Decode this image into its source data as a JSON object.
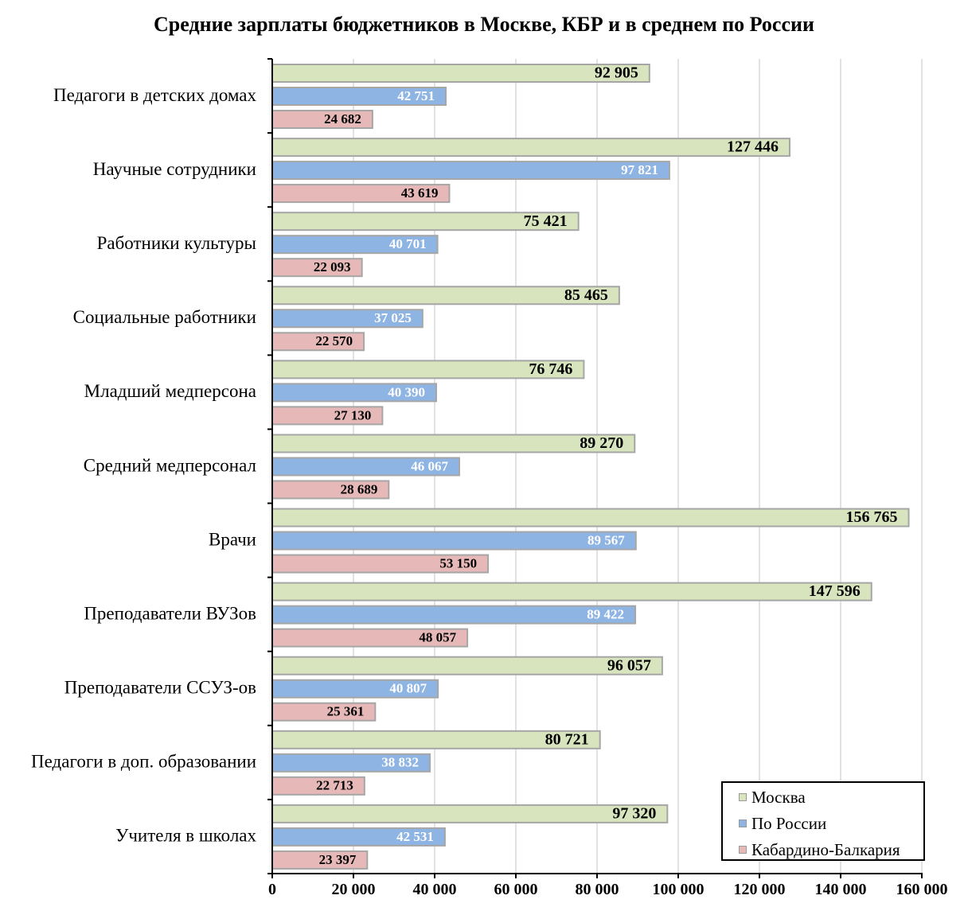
{
  "chart_data": {
    "type": "bar",
    "orientation": "horizontal",
    "title": "Средние зарплаты бюджетников в Москве, КБР и в среднем по России",
    "categories": [
      "Педагоги в детских домах",
      "Научные сотрудники",
      "Работники культуры",
      "Социальные работники",
      "Младший медперсона",
      "Средний медперсонал",
      "Врачи",
      "Преподаватели ВУЗов",
      "Преподаватели ССУЗ-ов",
      "Педагоги в доп. образовании",
      "Учителя в школах"
    ],
    "series": [
      {
        "name": "Москва",
        "color": "#d7e4bd",
        "values": [
          92905,
          127446,
          75421,
          85465,
          76746,
          89270,
          156765,
          147596,
          96057,
          80721,
          97320
        ],
        "labels": [
          "92 905",
          "127 446",
          "75 421",
          "85 465",
          "76 746",
          "89 270",
          "156 765",
          "147 596",
          "96 057",
          "80 721",
          "97 320"
        ]
      },
      {
        "name": "По России",
        "color": "#8eb4e3",
        "values": [
          42751,
          97821,
          40701,
          37025,
          40390,
          46067,
          89567,
          89422,
          40807,
          38832,
          42531
        ],
        "labels": [
          "42 751",
          "97 821",
          "40 701",
          "37 025",
          "40 390",
          "46 067",
          "89 567",
          "89 422",
          "40 807",
          "38 832",
          "42 531"
        ]
      },
      {
        "name": "Кабардино-Балкария",
        "color": "#e6b9b8",
        "values": [
          24682,
          43619,
          22093,
          22570,
          27130,
          28689,
          53150,
          48057,
          25361,
          22713,
          23397
        ],
        "labels": [
          "24 682",
          "43 619",
          "22 093",
          "22 570",
          "27 130",
          "28 689",
          "53 150",
          "48 057",
          "25 361",
          "22 713",
          "23 397"
        ]
      }
    ],
    "xlim": [
      0,
      160000
    ],
    "xticks": [
      0,
      20000,
      40000,
      60000,
      80000,
      100000,
      120000,
      140000,
      160000
    ],
    "xtick_labels": [
      "0",
      "20 000",
      "40 000",
      "60 000",
      "80 000",
      "100 000",
      "120 000",
      "140 000",
      "160 000"
    ],
    "grid": "vertical",
    "legend_position": "bottom-right",
    "border_color": "#a6a6a6",
    "grid_color": "#d9d9d9",
    "axis_color": "#000000"
  }
}
